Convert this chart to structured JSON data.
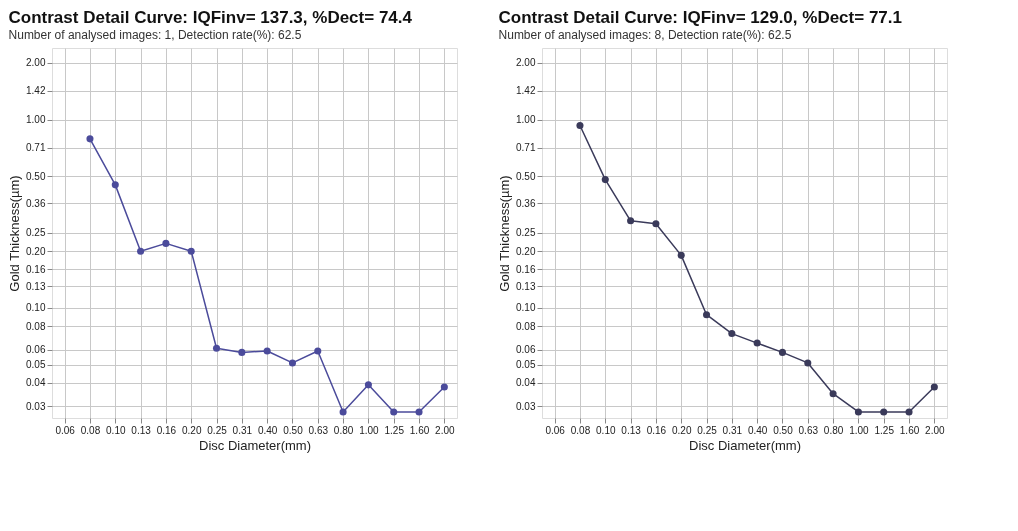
{
  "chart_data": [
    {
      "type": "line",
      "title": "Contrast Detail Curve: IQFinv= 137.3, %Dect= 74.4",
      "subtitle": "Number of analysed images: 1, Detection rate(%): 62.5",
      "xlabel": "Disc Diameter(mm)",
      "ylabel": "Gold Thickness(µm)",
      "categories": [
        "0.06",
        "0.08",
        "0.10",
        "0.13",
        "0.16",
        "0.20",
        "0.25",
        "0.31",
        "0.40",
        "0.50",
        "0.63",
        "0.80",
        "1.00",
        "1.25",
        "1.60",
        "2.00"
      ],
      "series": [
        {
          "color": "#4b4b9b",
          "values": [
            null,
            0.79,
            0.45,
            0.2,
            0.22,
            0.2,
            0.061,
            0.058,
            0.059,
            0.051,
            0.059,
            0.028,
            0.039,
            0.028,
            0.028,
            0.038
          ]
        }
      ],
      "ylim": [
        0.026,
        2.4
      ],
      "yticks": [
        {
          "value": 0.03,
          "label": "0.03"
        },
        {
          "value": 0.04,
          "label": "0.04"
        },
        {
          "value": 0.05,
          "label": "0.05"
        },
        {
          "value": 0.06,
          "label": "0.06"
        },
        {
          "value": 0.08,
          "label": "0.08"
        },
        {
          "value": 0.1,
          "label": "0.10"
        },
        {
          "value": 0.13,
          "label": "0.13"
        },
        {
          "value": 0.16,
          "label": "0.16"
        },
        {
          "value": 0.2,
          "label": "0.20"
        },
        {
          "value": 0.25,
          "label": "0.25"
        },
        {
          "value": 0.36,
          "label": "0.36"
        },
        {
          "value": 0.5,
          "label": "0.50"
        },
        {
          "value": 0.71,
          "label": "0.71"
        },
        {
          "value": 1,
          "label": "1.00"
        },
        {
          "value": 1.42,
          "label": "1.42"
        },
        {
          "value": 2,
          "label": "2.00"
        }
      ],
      "grid": true,
      "log": "y",
      "marker": "circle",
      "line_style": "solid"
    },
    {
      "type": "line",
      "title": "Contrast Detail Curve: IQFinv= 129.0, %Dect= 77.1",
      "subtitle": "Number of analysed images: 8, Detection rate(%): 62.5",
      "xlabel": "Disc Diameter(mm)",
      "ylabel": "Gold Thickness(µm)",
      "categories": [
        "0.06",
        "0.08",
        "0.10",
        "0.13",
        "0.16",
        "0.20",
        "0.25",
        "0.31",
        "0.40",
        "0.50",
        "0.63",
        "0.80",
        "1.00",
        "1.25",
        "1.60",
        "2.00"
      ],
      "series": [
        {
          "color": "#3a3a5a",
          "values": [
            null,
            0.93,
            0.48,
            0.29,
            0.28,
            0.19,
            0.092,
            0.073,
            0.065,
            0.058,
            0.051,
            0.035,
            0.028,
            0.028,
            0.028,
            0.038
          ]
        }
      ],
      "ylim": [
        0.026,
        2.4
      ],
      "yticks": [
        {
          "value": 0.03,
          "label": "0.03"
        },
        {
          "value": 0.04,
          "label": "0.04"
        },
        {
          "value": 0.05,
          "label": "0.05"
        },
        {
          "value": 0.06,
          "label": "0.06"
        },
        {
          "value": 0.08,
          "label": "0.08"
        },
        {
          "value": 0.1,
          "label": "0.10"
        },
        {
          "value": 0.13,
          "label": "0.13"
        },
        {
          "value": 0.16,
          "label": "0.16"
        },
        {
          "value": 0.2,
          "label": "0.20"
        },
        {
          "value": 0.25,
          "label": "0.25"
        },
        {
          "value": 0.36,
          "label": "0.36"
        },
        {
          "value": 0.5,
          "label": "0.50"
        },
        {
          "value": 0.71,
          "label": "0.71"
        },
        {
          "value": 1,
          "label": "1.00"
        },
        {
          "value": 1.42,
          "label": "1.42"
        },
        {
          "value": 2,
          "label": "2.00"
        }
      ],
      "grid": true,
      "log": "y",
      "marker": "circle",
      "line_style": "solid"
    }
  ]
}
